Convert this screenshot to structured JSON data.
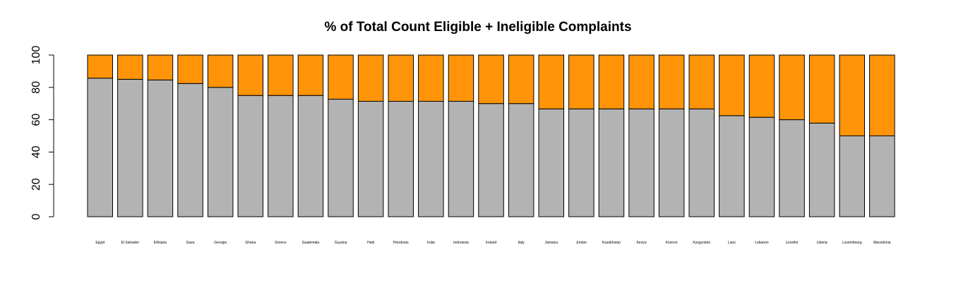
{
  "chart_data": {
    "type": "bar",
    "stacked": true,
    "title": "% of Total Count Eligible + Ineligible Complaints",
    "xlabel": "",
    "ylabel": "",
    "ylim": [
      0,
      100
    ],
    "yticks": [
      0,
      20,
      40,
      60,
      80,
      100
    ],
    "grid": false,
    "categories": [
      "Egypt",
      "El Salvador",
      "Ethiopia",
      "Gaza",
      "Georgia",
      "Ghana",
      "Greece",
      "Guatemala",
      "Guyana",
      "Haiti",
      "Honduras",
      "India",
      "Indonesia",
      "Ireland",
      "Italy",
      "Jamaica",
      "Jordan",
      "Kazakhstan",
      "Kenya",
      "Kosovo",
      "Kyrgyzstan",
      "Laos",
      "Lebanon",
      "Lesotho",
      "Liberia",
      "Luxembourg",
      "Macedonia"
    ],
    "series": [
      {
        "color": "#b3b3b3",
        "values": [
          85.7,
          85.0,
          84.6,
          82.4,
          80.0,
          75.0,
          75.0,
          75.0,
          72.7,
          71.4,
          71.4,
          71.4,
          71.4,
          70.0,
          70.0,
          66.7,
          66.7,
          66.7,
          66.7,
          66.7,
          66.7,
          62.5,
          61.5,
          60.0,
          57.9,
          50.0,
          50.0
        ]
      },
      {
        "color": "#ff9408",
        "values": [
          14.3,
          15.0,
          15.4,
          17.6,
          20.0,
          25.0,
          25.0,
          25.0,
          27.3,
          28.6,
          28.6,
          28.6,
          28.6,
          30.0,
          30.0,
          33.3,
          33.3,
          33.3,
          33.3,
          33.3,
          33.3,
          37.5,
          38.5,
          40.0,
          42.1,
          50.0,
          50.0
        ]
      }
    ]
  }
}
